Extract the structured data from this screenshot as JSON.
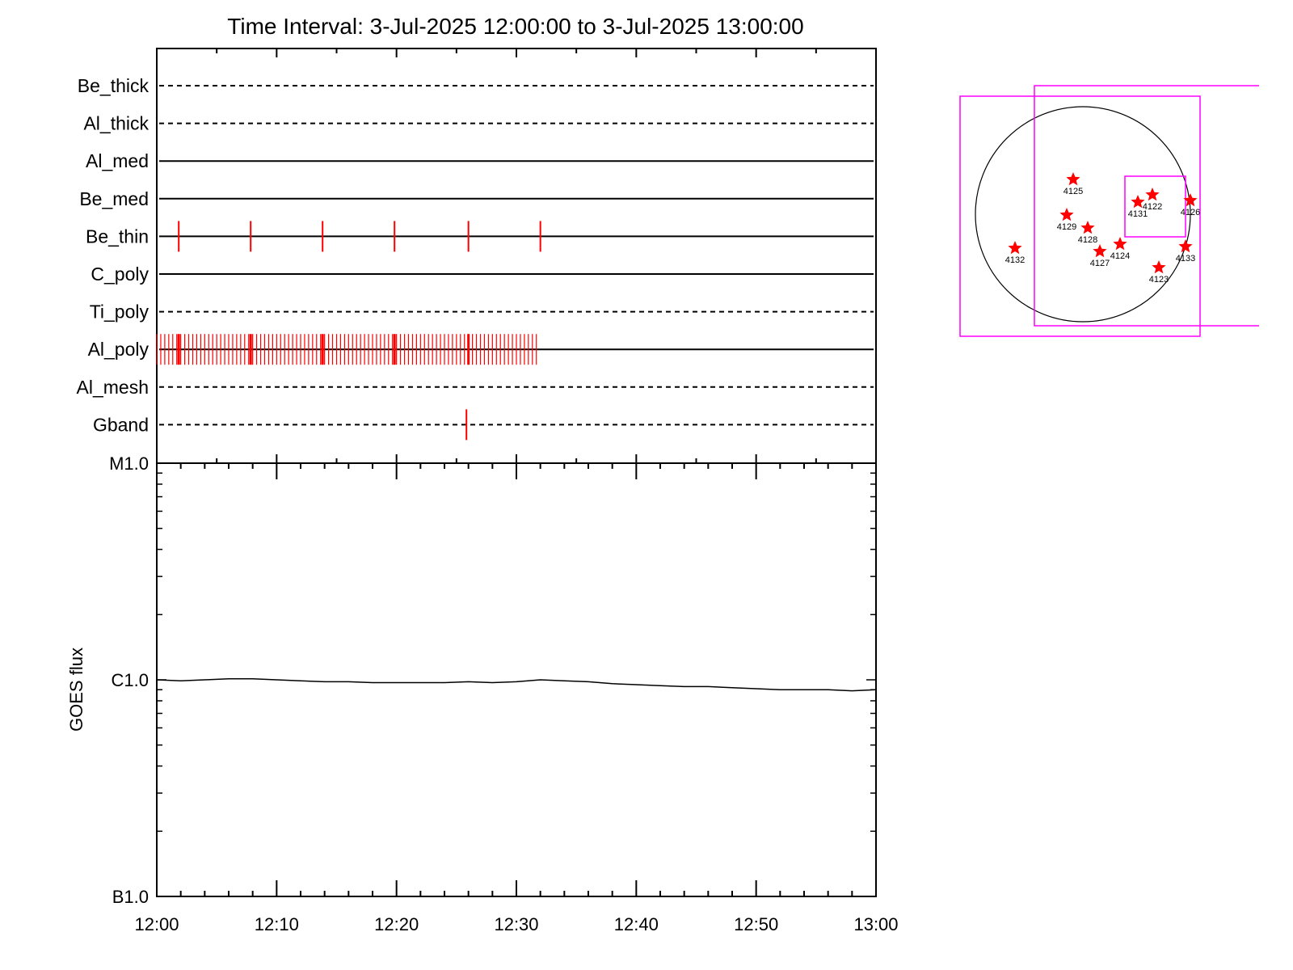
{
  "title": "Time Interval:  3-Jul-2025 12:00:00 to  3-Jul-2025 13:00:00",
  "chart_data": [
    {
      "type": "event-timeline",
      "x_range": [
        "12:00",
        "13:00"
      ],
      "rows": [
        {
          "label": "Be_thick",
          "line": "dashed",
          "events": []
        },
        {
          "label": "Al_thick",
          "line": "dashed",
          "events": []
        },
        {
          "label": "Al_med",
          "line": "solid",
          "events": []
        },
        {
          "label": "Be_med",
          "line": "solid",
          "events": []
        },
        {
          "label": "Be_thin",
          "line": "solid",
          "events": [
            "12:01:50",
            "12:07:50",
            "12:13:50",
            "12:19:50",
            "12:26:00",
            "12:32:00"
          ]
        },
        {
          "label": "C_poly",
          "line": "solid",
          "events": []
        },
        {
          "label": "Ti_poly",
          "line": "dashed",
          "events": []
        },
        {
          "label": "Al_poly",
          "line": "solid",
          "event_range": [
            "12:00:00",
            "12:31:40"
          ],
          "cadence_seconds": 20,
          "emphasized_events": [
            "12:01:50",
            "12:07:50",
            "12:13:50",
            "12:19:50",
            "12:26:00"
          ]
        },
        {
          "label": "Al_mesh",
          "line": "dashed",
          "events": []
        },
        {
          "label": "Gband",
          "line": "dashed",
          "events": [
            "12:25:50"
          ]
        }
      ],
      "event_color": "#ff0000"
    },
    {
      "type": "line",
      "ylabel": "GOES flux",
      "yscale": "log",
      "ylim": [
        1e-07,
        1e-05
      ],
      "y_ticks": [
        {
          "value": 1e-05,
          "label": "M1.0"
        },
        {
          "value": 1e-06,
          "label": "C1.0"
        },
        {
          "value": 1e-07,
          "label": "B1.0"
        }
      ],
      "x_ticks": [
        "12:00",
        "12:10",
        "12:20",
        "12:30",
        "12:40",
        "12:50",
        "13:00"
      ],
      "xlim": [
        "12:00",
        "13:00"
      ],
      "series": [
        {
          "x": [
            "12:00",
            "12:02",
            "12:04",
            "12:06",
            "12:08",
            "12:10",
            "12:12",
            "12:14",
            "12:16",
            "12:18",
            "12:20",
            "12:22",
            "12:24",
            "12:26",
            "12:28",
            "12:30",
            "12:32",
            "12:34",
            "12:36",
            "12:38",
            "12:40",
            "12:42",
            "12:44",
            "12:46",
            "12:48",
            "12:50",
            "12:52",
            "12:54",
            "12:56",
            "12:58",
            "13:00"
          ],
          "y": [
            1e-06,
            9.9e-07,
            1e-06,
            1.01e-06,
            1.01e-06,
            1e-06,
            9.9e-07,
            9.8e-07,
            9.8e-07,
            9.7e-07,
            9.7e-07,
            9.7e-07,
            9.7e-07,
            9.8e-07,
            9.7e-07,
            9.8e-07,
            1e-06,
            9.9e-07,
            9.8e-07,
            9.6e-07,
            9.5e-07,
            9.4e-07,
            9.3e-07,
            9.3e-07,
            9.2e-07,
            9.1e-07,
            9e-07,
            9e-07,
            9e-07,
            8.9e-07,
            9e-07
          ],
          "color": "#000000"
        }
      ]
    },
    {
      "type": "solar-map",
      "regions": [
        "4125",
        "4122",
        "4131",
        "4126",
        "4129",
        "4128",
        "4124",
        "4127",
        "4133",
        "4132",
        "4123"
      ],
      "region_marker": "star",
      "marker_color": "#ff0000",
      "fov_box_color": "#ff00ff",
      "disk_color": "#000000"
    }
  ]
}
